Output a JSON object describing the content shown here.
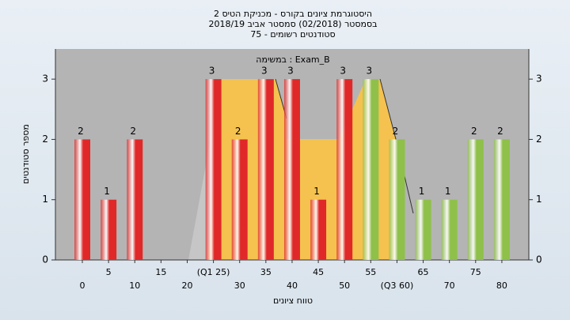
{
  "chart_data": {
    "type": "bar",
    "title": "היסטוגרמת ציונים בקורס - מכניקת הטיס 2",
    "subtitle": "בסמסטר  (02/2018)  סמסטר אביב 2018/19",
    "subtitle2": "סטודנטים רשומים - 75",
    "annotation": "במשימה : Exam_B",
    "x_label": "טווח ציונים",
    "y_label": "מספר סטודנטים",
    "categories": [
      "0",
      "5",
      "10",
      "15",
      "20",
      "(Q1 25)",
      "30",
      "35",
      "40",
      "45",
      "50",
      "55",
      "(Q3 60)",
      "65",
      "70",
      "75",
      "80"
    ],
    "values": [
      2,
      1,
      2,
      0,
      0,
      3,
      2,
      3,
      3,
      1,
      3,
      3,
      2,
      1,
      1,
      2,
      2
    ],
    "colors": [
      "#e02828",
      "#e02828",
      "#e02828",
      "#e02828",
      "#e02828",
      "#e02828",
      "#e02828",
      "#e02828",
      "#e02828",
      "#e02828",
      "#e02828",
      "#8fc04a",
      "#8fc04a",
      "#8fc04a",
      "#8fc04a",
      "#8fc04a",
      "#8fc04a"
    ],
    "ylim": [
      0,
      3.5
    ],
    "yticks": [
      0,
      1,
      2,
      3
    ]
  }
}
